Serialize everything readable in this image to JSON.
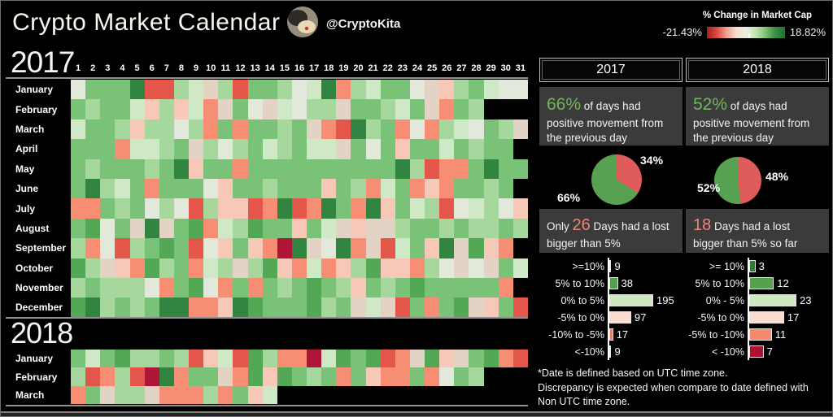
{
  "header": {
    "title": "Crypto Market Calendar",
    "handle": "@CryptoKita"
  },
  "legend": {
    "title": "% Change in Market Cap",
    "min_label": "-21.43%",
    "max_label": "18.82%"
  },
  "palette": {
    "D": "#318540",
    "m": "#53a855",
    "G": "#79c277",
    "g": "#a6d89e",
    "p": "#cfe9c6",
    "w": "#e2e8da",
    "t": "#e2d3c4",
    "P": "#f7c7b8",
    "s": "#f78d73",
    "R": "#e5564a",
    "r": "#ae1536",
    "k": "#000000"
  },
  "chart_data": [
    {
      "id": "calendar-2017",
      "type": "heatmap",
      "year": "2017",
      "colorscale": {
        "min": -21.43,
        "max": 18.82,
        "units": "% change in market cap"
      },
      "day_headers": [
        "1",
        "2",
        "3",
        "4",
        "5",
        "6",
        "7",
        "8",
        "9",
        "10",
        "11",
        "12",
        "13",
        "14",
        "15",
        "16",
        "17",
        "18",
        "19",
        "20",
        "21",
        "22",
        "23",
        "24",
        "25",
        "26",
        "27",
        "28",
        "29",
        "30",
        "31"
      ],
      "cell_legend": "codes map to palette buckets: D dark-green, m med-green, G green, g light-green, p pale-green, w neutral, t tan, P light-pink, s salmon, R red, r dark-red, k no-data",
      "months": [
        {
          "name": "January",
          "cells": "wGGGDRRgptgRGGgwpDsgpGGwtPgGpww"
        },
        {
          "name": "February",
          "cells": "GgGGpPgPpstGwtpwggtGGgpGtsGgkkk"
        },
        {
          "name": "March",
          "cells": "pGGgPggwgsGsGGgGtsRDgGswsgpwGgt"
        },
        {
          "name": "April",
          "cells": "GGGsppgGtgwgGpgGpptGwGPGGpGgGGk"
        },
        {
          "name": "May",
          "cells": "GgGGGgGDPGGsGGGGGGGGGGDgRssGDGG"
        },
        {
          "name": "June",
          "cells": "GDgpGsGGGwPGGgGGGPGgspGsPsGGgGk"
        },
        {
          "name": "July",
          "cells": "ssGgGwgwRgPPRsDRsDGsDPGpgRwpgwP"
        },
        {
          "name": "August",
          "cells": "GmwGtDtGmspgmGGPGptPttgGGgGggGg"
        },
        {
          "name": "September",
          "cells": "gswRgGmGRwPGPsrDtwDstRpGPDtmPsk"
        },
        {
          "name": "October",
          "cells": "mgtPsmgGspgtgmPspsPgmPPsgwtwtGp"
        },
        {
          "name": "November",
          "cells": "gGgggwsGmwsGsGgGmGgPGgGmGGGGGsk"
        },
        {
          "name": "December",
          "cells": "mDgGgGDDssPDmGGGmgGtptRGsGmtPGR"
        }
      ]
    },
    {
      "id": "calendar-2018",
      "type": "heatmap",
      "year": "2018",
      "months": [
        {
          "name": "January",
          "cells": "GpGmggGgRPpRmgssrpmGmRstmPtGmsR"
        },
        {
          "name": "February",
          "cells": "gRsgRrDsGGtsmPmGgGsGPssGswGgkkk"
        },
        {
          "name": "March",
          "cells": "sGtggtsssgsGPpkkkkkkkkkkkkkkkkk"
        }
      ]
    },
    {
      "id": "pie-2017",
      "type": "pie",
      "title": "2017 positive vs negative days",
      "labels": [
        "66%",
        "34%"
      ],
      "values": [
        66,
        34
      ],
      "colors": [
        "#57a152",
        "#e05c5a"
      ],
      "series_names": [
        "positive",
        "negative"
      ]
    },
    {
      "id": "pie-2018",
      "type": "pie",
      "title": "2018 positive vs negative days",
      "labels": [
        "52%",
        "48%"
      ],
      "values": [
        52,
        48
      ],
      "colors": [
        "#57a152",
        "#e05c5a"
      ],
      "series_names": [
        "positive",
        "negative"
      ]
    },
    {
      "id": "bars-2017",
      "type": "bar",
      "title": "2017 day count by % change bucket",
      "categories": [
        ">=10%",
        "5% to 10%",
        "0% to 5%",
        "-5% to 0%",
        "-10% to -5%",
        "<-10%"
      ],
      "values": [
        9,
        38,
        195,
        97,
        17,
        9
      ],
      "colors": [
        "#2e7d36",
        "#55a04e",
        "#cdeabf",
        "#fbdcd2",
        "#f4765f",
        "#d8414a"
      ]
    },
    {
      "id": "bars-2018",
      "type": "bar",
      "title": "2018 day count by % change bucket",
      "categories": [
        ">= 10%",
        "5% to 10%",
        "0% - 5%",
        "-5% to 0%",
        "-5% to -10%",
        "< -10%"
      ],
      "values": [
        3,
        12,
        23,
        17,
        11,
        7
      ],
      "colors": [
        "#2e7d36",
        "#55a04e",
        "#cdeabf",
        "#fbdcd2",
        "#f48a6e",
        "#ab1236"
      ]
    }
  ],
  "panels": {
    "y2017": {
      "year_box": "2017",
      "stat_num": "66%",
      "stat_text": "of days had positive movement from the previous day",
      "lost_prefix": "Only",
      "lost_num": "26",
      "lost_text": "Days had a lost bigger than 5%"
    },
    "y2018": {
      "year_box": "2018",
      "stat_num": "52%",
      "stat_text": "of days had positive movement from the previous day",
      "lost_prefix": "",
      "lost_num": "18",
      "lost_text": "Days had a lost bigger than 5% so far"
    }
  },
  "footnote": "*Date is defined based on UTC time zone.\nDiscrepancy is expected when compare to date defined with\nNon UTC time zone."
}
